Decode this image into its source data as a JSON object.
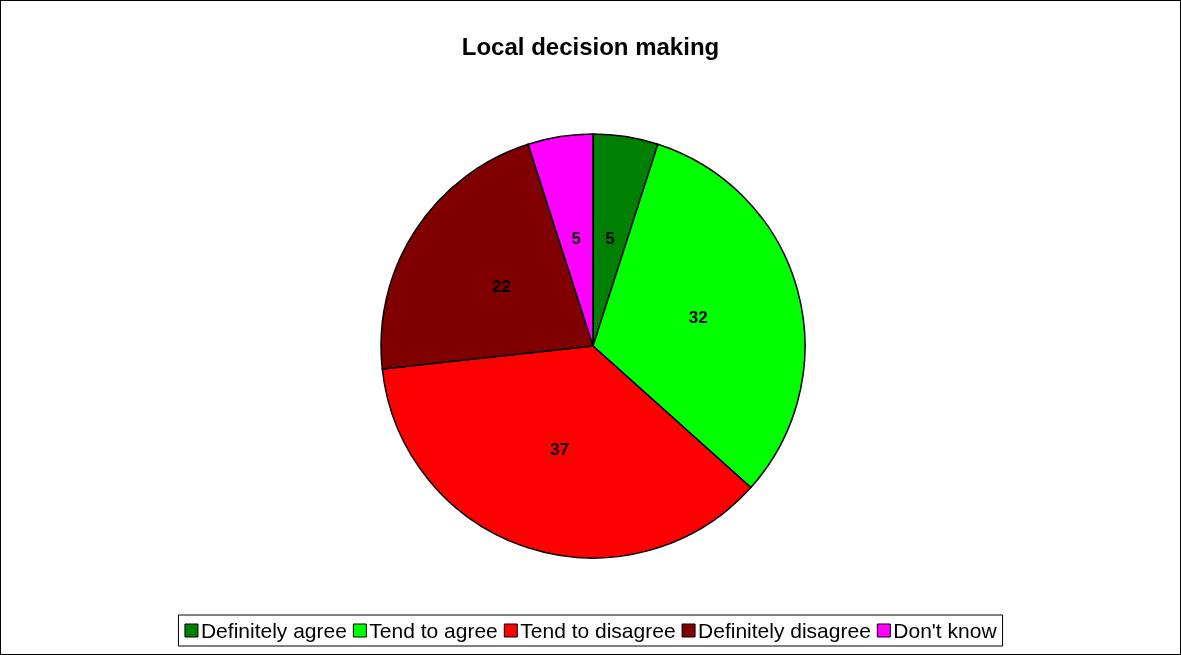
{
  "chart_data": {
    "type": "pie",
    "title": "Local decision making",
    "categories": [
      "Definitely agree",
      "Tend to agree",
      "Tend to disagree",
      "Definitely disagree",
      "Don't know"
    ],
    "values": [
      5,
      32,
      37,
      22,
      5
    ],
    "colors": [
      "#008000",
      "#00ff00",
      "#ff0000",
      "#800000",
      "#ff00ff"
    ],
    "data_labels": true,
    "legend": "bottom"
  }
}
